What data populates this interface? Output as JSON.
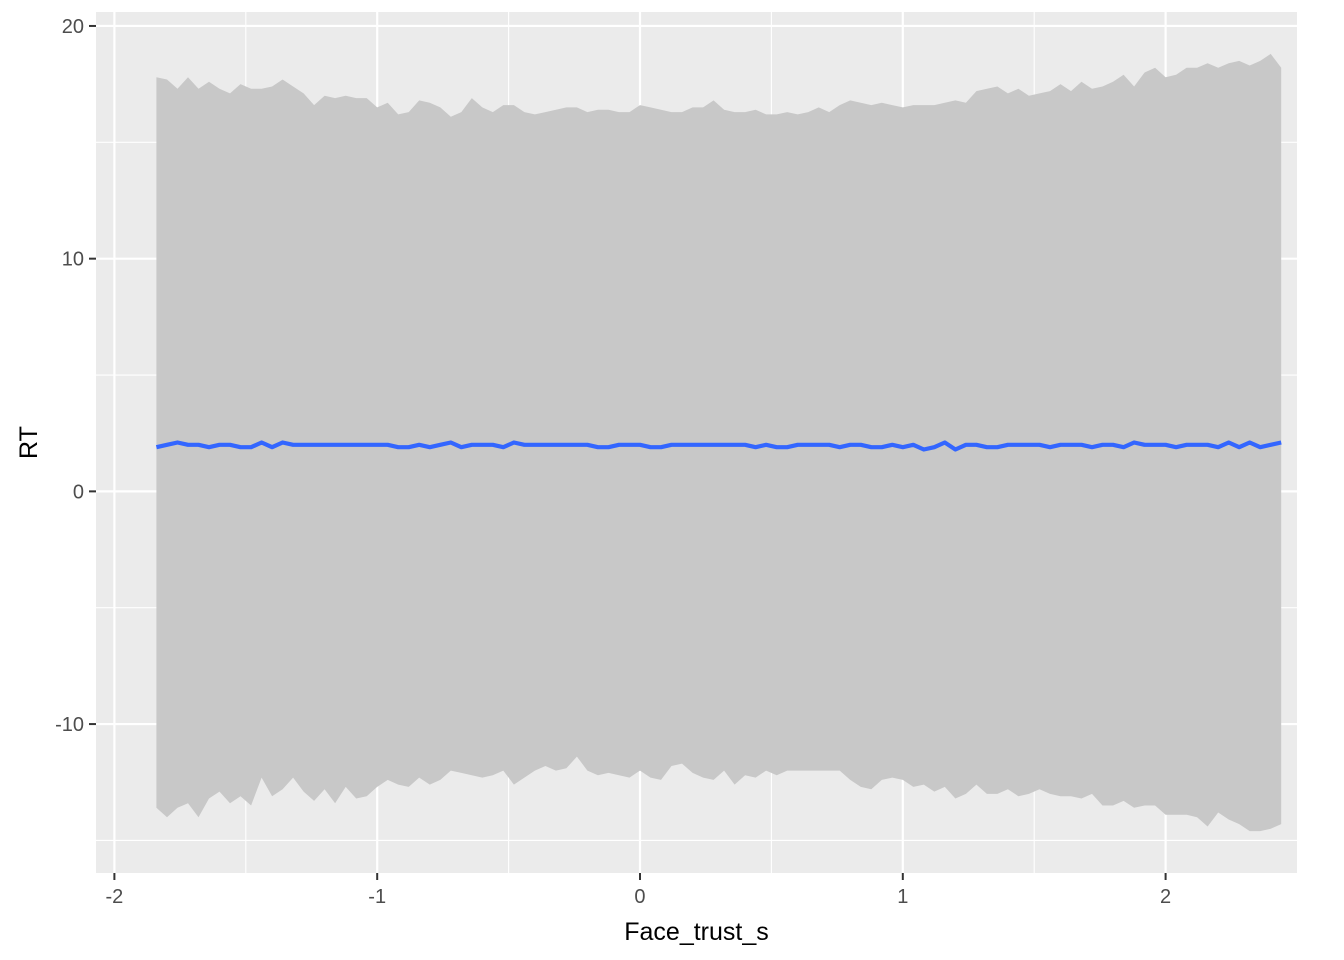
{
  "chart_data": {
    "type": "line",
    "title": "",
    "xlabel": "Face_trust_s",
    "ylabel": "RT",
    "xlim": [
      -2.07,
      2.5
    ],
    "ylim": [
      -16.4,
      20.6
    ],
    "x_ticks": [
      -2,
      -1,
      0,
      1,
      2
    ],
    "x_tick_labels": [
      "-2",
      "-1",
      "0",
      "1",
      "2"
    ],
    "y_ticks": [
      -10,
      0,
      10,
      20
    ],
    "y_tick_labels": [
      "-10",
      "0",
      "10",
      "20"
    ],
    "grid": true,
    "legend": "none",
    "colors": {
      "panel": "#ebebeb",
      "grid": "#ffffff",
      "ribbon": "#c8c8c8",
      "line": "#3366ff",
      "tick_label": "#4d4d4d"
    },
    "series": [
      {
        "x": [
          -1.84,
          -1.8,
          -1.76,
          -1.72,
          -1.68,
          -1.64,
          -1.6,
          -1.56,
          -1.52,
          -1.48,
          -1.44,
          -1.4,
          -1.36,
          -1.32,
          -1.28,
          -1.24,
          -1.2,
          -1.16,
          -1.12,
          -1.08,
          -1.04,
          -1.0,
          -0.96,
          -0.92,
          -0.88,
          -0.84,
          -0.8,
          -0.76,
          -0.72,
          -0.68,
          -0.64,
          -0.6,
          -0.56,
          -0.52,
          -0.48,
          -0.44,
          -0.4,
          -0.36,
          -0.32,
          -0.28,
          -0.24,
          -0.2,
          -0.16,
          -0.12,
          -0.08,
          -0.04,
          0.0,
          0.04,
          0.08,
          0.12,
          0.16,
          0.2,
          0.24,
          0.28,
          0.32,
          0.36,
          0.4,
          0.44,
          0.48,
          0.52,
          0.56,
          0.6,
          0.64,
          0.68,
          0.72,
          0.76,
          0.8,
          0.84,
          0.88,
          0.92,
          0.96,
          1.0,
          1.04,
          1.08,
          1.12,
          1.16,
          1.2,
          1.24,
          1.28,
          1.32,
          1.36,
          1.4,
          1.44,
          1.48,
          1.52,
          1.56,
          1.6,
          1.64,
          1.68,
          1.72,
          1.76,
          1.8,
          1.84,
          1.88,
          1.92,
          1.96,
          2.0,
          2.04,
          2.08,
          2.12,
          2.16,
          2.2,
          2.24,
          2.28,
          2.32,
          2.36,
          2.4,
          2.44
        ],
        "y": [
          1.9,
          2.0,
          2.1,
          2.0,
          2.0,
          1.9,
          2.0,
          2.0,
          1.9,
          1.9,
          2.1,
          1.9,
          2.1,
          2.0,
          2.0,
          2.0,
          2.0,
          2.0,
          2.0,
          2.0,
          2.0,
          2.0,
          2.0,
          1.9,
          1.9,
          2.0,
          1.9,
          2.0,
          2.1,
          1.9,
          2.0,
          2.0,
          2.0,
          1.9,
          2.1,
          2.0,
          2.0,
          2.0,
          2.0,
          2.0,
          2.0,
          2.0,
          1.9,
          1.9,
          2.0,
          2.0,
          2.0,
          1.9,
          1.9,
          2.0,
          2.0,
          2.0,
          2.0,
          2.0,
          2.0,
          2.0,
          2.0,
          1.9,
          2.0,
          1.9,
          1.9,
          2.0,
          2.0,
          2.0,
          2.0,
          1.9,
          2.0,
          2.0,
          1.9,
          1.9,
          2.0,
          1.9,
          2.0,
          1.8,
          1.9,
          2.1,
          1.8,
          2.0,
          2.0,
          1.9,
          1.9,
          2.0,
          2.0,
          2.0,
          2.0,
          1.9,
          2.0,
          2.0,
          2.0,
          1.9,
          2.0,
          2.0,
          1.9,
          2.1,
          2.0,
          2.0,
          2.0,
          1.9,
          2.0,
          2.0,
          2.0,
          1.9,
          2.1,
          1.9,
          2.1,
          1.9,
          2.0,
          2.1
        ],
        "upper": [
          17.8,
          17.7,
          17.3,
          17.8,
          17.3,
          17.6,
          17.3,
          17.1,
          17.5,
          17.3,
          17.3,
          17.4,
          17.7,
          17.4,
          17.1,
          16.6,
          17.0,
          16.9,
          17.0,
          16.9,
          16.9,
          16.5,
          16.7,
          16.2,
          16.3,
          16.8,
          16.7,
          16.5,
          16.1,
          16.3,
          16.9,
          16.5,
          16.3,
          16.6,
          16.6,
          16.3,
          16.2,
          16.3,
          16.4,
          16.5,
          16.5,
          16.3,
          16.4,
          16.4,
          16.3,
          16.3,
          16.6,
          16.5,
          16.4,
          16.3,
          16.3,
          16.5,
          16.5,
          16.8,
          16.4,
          16.3,
          16.3,
          16.4,
          16.2,
          16.2,
          16.3,
          16.2,
          16.3,
          16.5,
          16.3,
          16.6,
          16.8,
          16.7,
          16.6,
          16.7,
          16.6,
          16.5,
          16.6,
          16.6,
          16.6,
          16.7,
          16.8,
          16.7,
          17.2,
          17.3,
          17.4,
          17.1,
          17.3,
          17.0,
          17.1,
          17.2,
          17.5,
          17.2,
          17.6,
          17.3,
          17.4,
          17.6,
          17.9,
          17.4,
          18.0,
          18.2,
          17.8,
          17.9,
          18.2,
          18.2,
          18.4,
          18.2,
          18.4,
          18.5,
          18.3,
          18.5,
          18.8,
          18.2
        ],
        "lower": [
          -13.6,
          -14.0,
          -13.6,
          -13.4,
          -14.0,
          -13.2,
          -12.9,
          -13.4,
          -13.1,
          -13.5,
          -12.3,
          -13.1,
          -12.8,
          -12.3,
          -12.9,
          -13.3,
          -12.8,
          -13.4,
          -12.7,
          -13.2,
          -13.1,
          -12.7,
          -12.4,
          -12.6,
          -12.7,
          -12.3,
          -12.6,
          -12.4,
          -12.0,
          -12.1,
          -12.2,
          -12.3,
          -12.2,
          -12.0,
          -12.6,
          -12.3,
          -12.0,
          -11.8,
          -12.0,
          -11.9,
          -11.4,
          -12.0,
          -12.2,
          -12.1,
          -12.2,
          -12.3,
          -12.0,
          -12.3,
          -12.4,
          -11.8,
          -11.7,
          -12.1,
          -12.3,
          -12.4,
          -12.0,
          -12.6,
          -12.2,
          -12.3,
          -12.0,
          -12.2,
          -12.0,
          -12.0,
          -12.0,
          -12.0,
          -12.0,
          -12.0,
          -12.4,
          -12.7,
          -12.8,
          -12.4,
          -12.3,
          -12.4,
          -12.7,
          -12.6,
          -12.9,
          -12.7,
          -13.2,
          -13.0,
          -12.6,
          -13.0,
          -13.0,
          -12.8,
          -13.1,
          -13.0,
          -12.8,
          -13.0,
          -13.1,
          -13.1,
          -13.2,
          -13.0,
          -13.5,
          -13.5,
          -13.3,
          -13.6,
          -13.5,
          -13.5,
          -13.9,
          -13.9,
          -13.9,
          -14.0,
          -14.4,
          -13.8,
          -14.1,
          -14.3,
          -14.6,
          -14.6,
          -14.5,
          -14.3
        ]
      }
    ]
  }
}
